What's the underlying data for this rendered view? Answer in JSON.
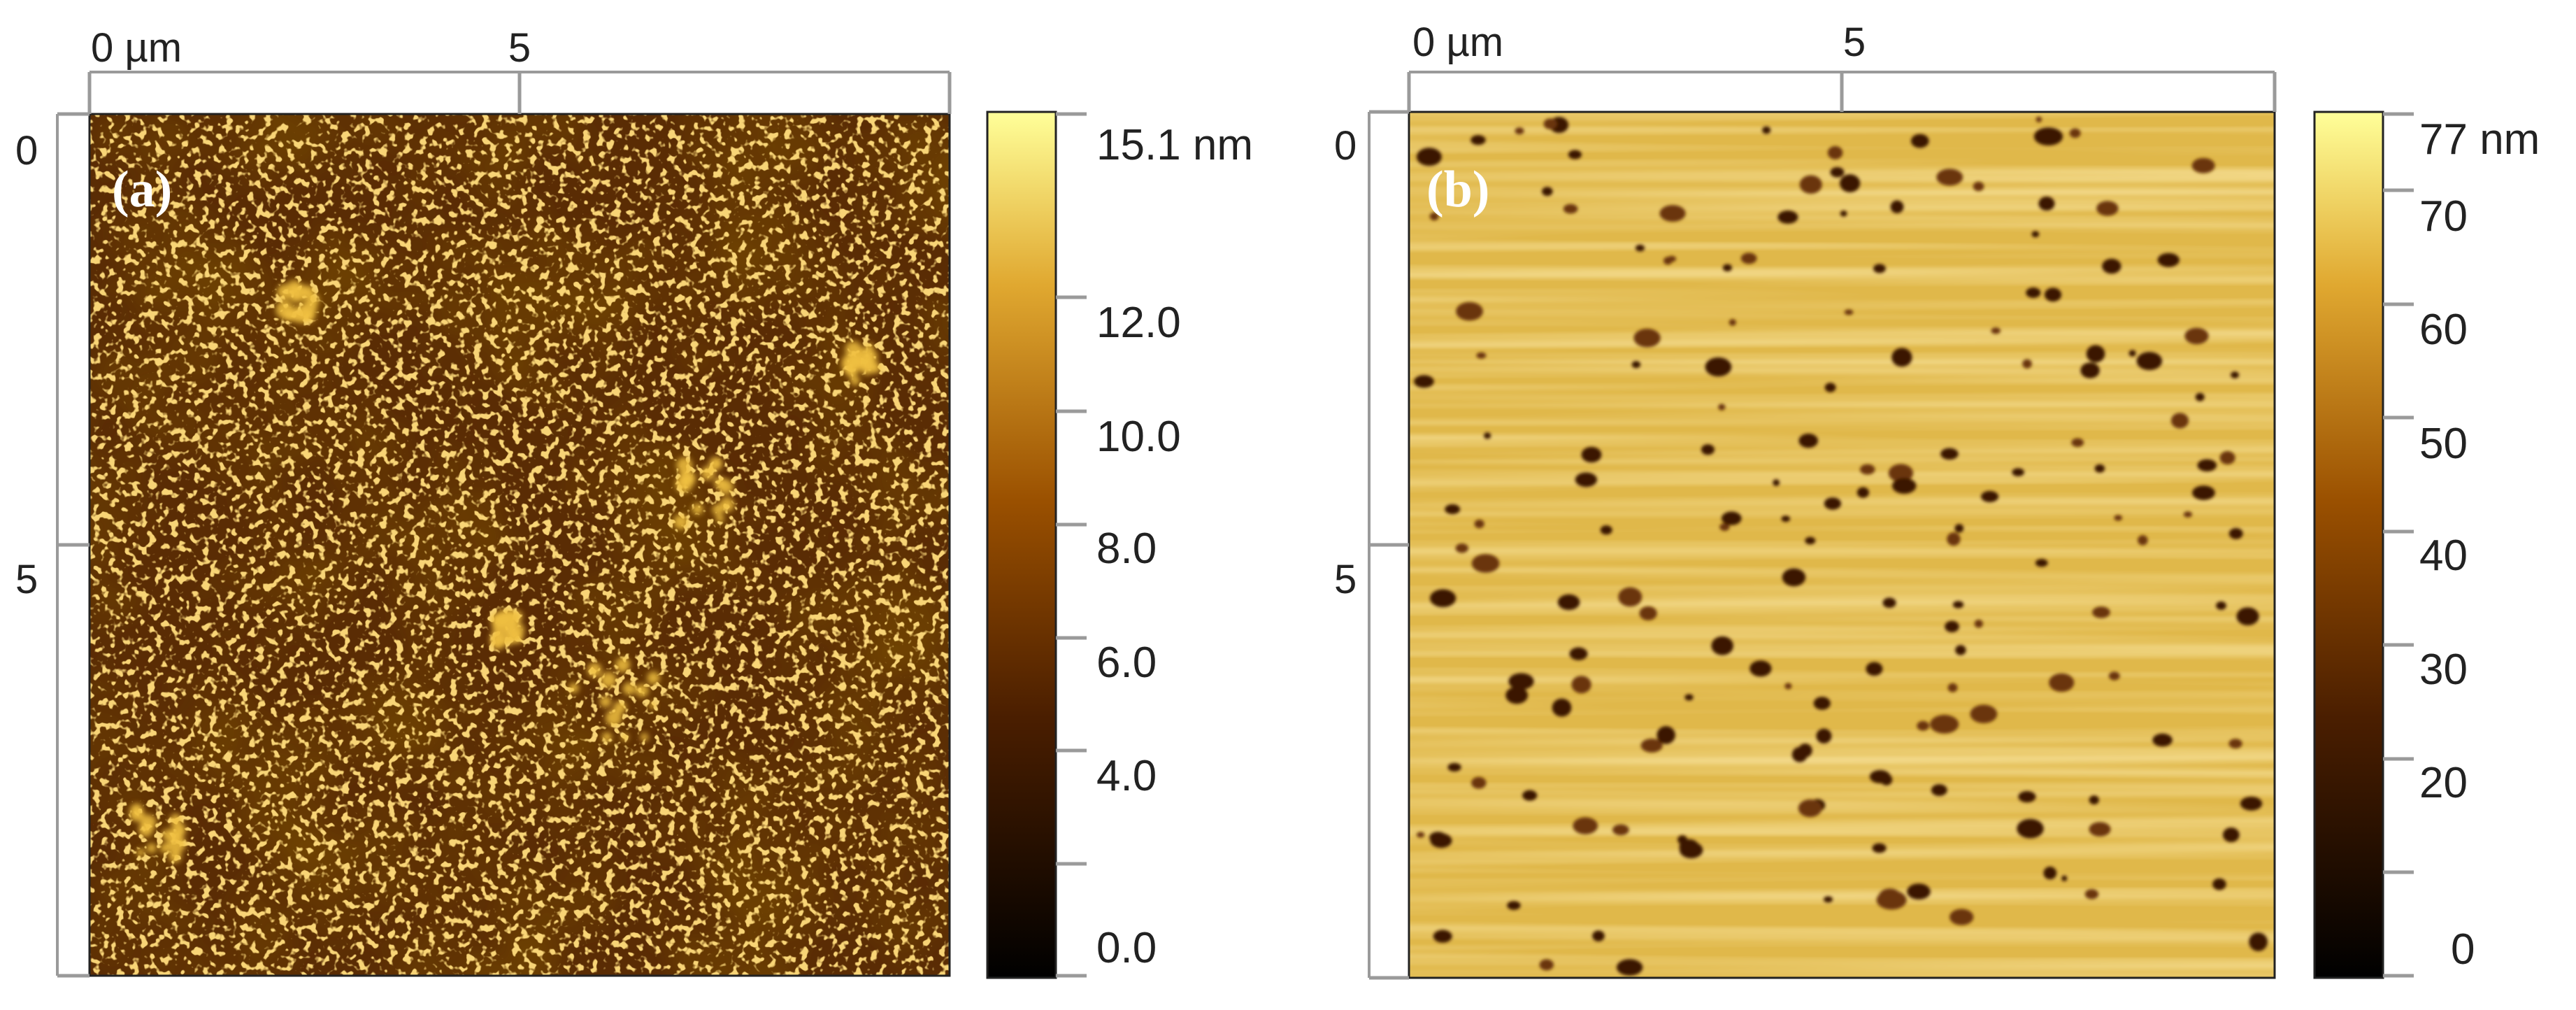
{
  "panels": [
    {
      "id": "a",
      "panel_label": "(a)",
      "x_axis": {
        "tick_labels": [
          "0 µm",
          "5"
        ]
      },
      "y_axis": {
        "tick_labels": [
          "0",
          "5"
        ]
      },
      "scale_bar": {
        "top_label": "15.1 nm",
        "tick_labels": [
          "12.0",
          "10.0",
          "8.0",
          "6.0",
          "4.0",
          "0.0"
        ],
        "range": [
          0.0,
          15.1
        ],
        "unit": "nm"
      },
      "colors": {
        "low": "#000000",
        "mid": "#7a3a00",
        "base": "#5a2c04",
        "high": "#f0c040",
        "top": "#ffff99"
      }
    },
    {
      "id": "b",
      "panel_label": "(b)",
      "x_axis": {
        "tick_labels": [
          "0 µm",
          "5"
        ]
      },
      "y_axis": {
        "tick_labels": [
          "0",
          "5"
        ]
      },
      "scale_bar": {
        "top_label": "77 nm",
        "tick_labels": [
          "70",
          "60",
          "50",
          "40",
          "30",
          "20",
          "0"
        ],
        "range": [
          0,
          77
        ],
        "unit": "nm"
      },
      "colors": {
        "low": "#000000",
        "mid": "#7a3a00",
        "base": "#e0b84a",
        "high": "#f0d060",
        "top": "#ffff99"
      }
    }
  ]
}
